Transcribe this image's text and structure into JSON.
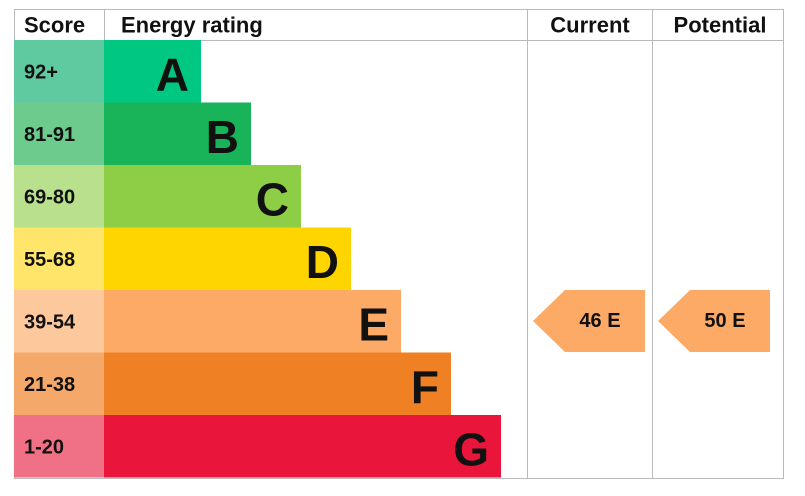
{
  "header": {
    "score": "Score",
    "rating": "Energy rating",
    "current": "Current",
    "potential": "Potential"
  },
  "bands": [
    {
      "score": "92+",
      "letter": "A"
    },
    {
      "score": "81-91",
      "letter": "B"
    },
    {
      "score": "69-80",
      "letter": "C"
    },
    {
      "score": "55-68",
      "letter": "D"
    },
    {
      "score": "39-54",
      "letter": "E"
    },
    {
      "score": "21-38",
      "letter": "F"
    },
    {
      "score": "1-20",
      "letter": "G"
    }
  ],
  "current": "46 E",
  "potential": "50 E"
}
